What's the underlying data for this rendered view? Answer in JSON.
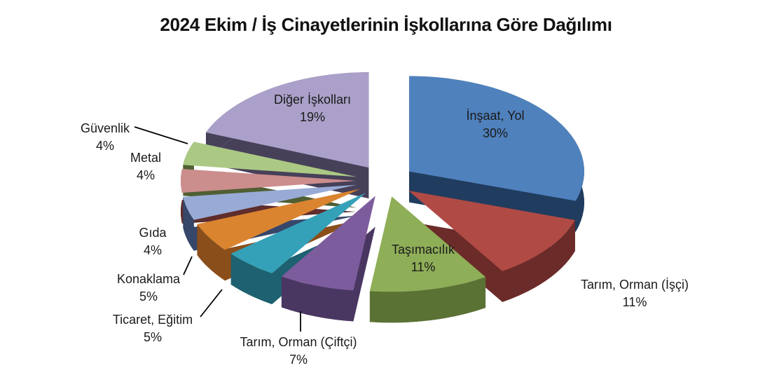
{
  "title": "2024 Ekim / İş Cinayetlerinin İşkollarına Göre Dağılımı",
  "chart_data": {
    "type": "pie",
    "style": "3d-exploded",
    "title": "2024 Ekim / İş Cinayetlerinin İşkollarına Göre Dağılımı",
    "direction": "clockwise",
    "start_angle_deg": 0,
    "value_unit": "%",
    "total": 100,
    "background": "#FFFFFF",
    "text_color": "#1A1A1A",
    "slices": [
      {
        "label": "İnşaat, Yol",
        "value": 30,
        "color": "#4F81BD",
        "side_color": "#203C5E",
        "label_placement": "inside"
      },
      {
        "label": "Tarım, Orman (İşçi)",
        "value": 11,
        "color": "#B04A45",
        "side_color": "#6B2B28",
        "label_placement": "outside"
      },
      {
        "label": "Taşımacılık",
        "value": 11,
        "color": "#8FAE58",
        "side_color": "#5A7234",
        "label_placement": "inside"
      },
      {
        "label": "Tarım, Orman (Çiftçi)",
        "value": 7,
        "color": "#7D5C9E",
        "side_color": "#4A3761",
        "label_placement": "outside"
      },
      {
        "label": "Ticaret, Eğitim",
        "value": 5,
        "color": "#35A1B8",
        "side_color": "#1E6170",
        "label_placement": "outside"
      },
      {
        "label": "Konaklama",
        "value": 5,
        "color": "#DA8430",
        "side_color": "#8A4E1B",
        "label_placement": "outside"
      },
      {
        "label": "Gıda",
        "value": 4,
        "color": "#98ABD6",
        "side_color": "#364769",
        "label_placement": "outside"
      },
      {
        "label": "Metal",
        "value": 4,
        "color": "#CC8D8D",
        "side_color": "#5F2D2B",
        "label_placement": "outside"
      },
      {
        "label": "Güvenlik",
        "value": 4,
        "color": "#ABC984",
        "side_color": "#4F5F33",
        "label_placement": "outside"
      },
      {
        "label": "Diğer İşkolları",
        "value": 19,
        "color": "#ABA0C9",
        "side_color": "#474059",
        "label_placement": "inside"
      }
    ]
  }
}
